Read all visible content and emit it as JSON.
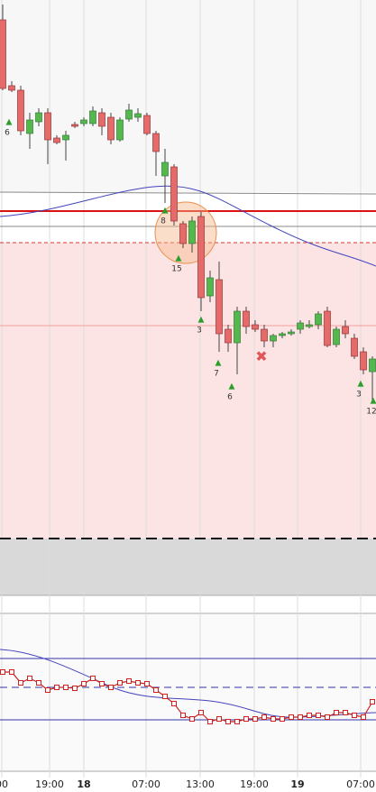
{
  "chart_data": {
    "type": "candlestick",
    "ylim": [
      0,
      660
    ],
    "ohlc": [
      [
        638,
        655,
        560,
        562
      ],
      [
        565,
        570,
        558,
        560
      ],
      [
        560,
        565,
        510,
        515
      ],
      [
        512,
        535,
        495,
        527
      ],
      [
        525,
        540,
        520,
        535
      ],
      [
        535,
        540,
        478,
        505
      ],
      [
        507,
        510,
        500,
        502
      ],
      [
        505,
        515,
        482,
        510
      ],
      [
        522,
        525,
        518,
        520
      ],
      [
        523,
        530,
        520,
        527
      ],
      [
        523,
        542,
        520,
        537
      ],
      [
        535,
        540,
        510,
        520
      ],
      [
        530,
        535,
        500,
        505
      ],
      [
        505,
        530,
        503,
        527
      ],
      [
        528,
        545,
        525,
        538
      ],
      [
        530,
        540,
        525,
        534
      ],
      [
        532,
        535,
        510,
        512
      ],
      [
        512,
        515,
        465,
        492
      ],
      [
        465,
        495,
        435,
        480
      ],
      [
        475,
        478,
        410,
        415
      ],
      [
        412,
        415,
        385,
        390
      ],
      [
        390,
        420,
        380,
        415
      ],
      [
        420,
        425,
        315,
        330
      ],
      [
        332,
        360,
        325,
        352
      ],
      [
        350,
        370,
        270,
        290
      ],
      [
        295,
        300,
        270,
        280
      ],
      [
        280,
        320,
        245,
        315
      ],
      [
        315,
        320,
        290,
        298
      ],
      [
        300,
        305,
        292,
        295
      ],
      [
        295,
        300,
        275,
        282
      ],
      [
        282,
        290,
        275,
        288
      ],
      [
        288,
        292,
        285,
        290
      ],
      [
        290,
        295,
        288,
        292
      ],
      [
        295,
        305,
        290,
        302
      ],
      [
        298,
        305,
        296,
        300
      ],
      [
        300,
        315,
        295,
        312
      ],
      [
        315,
        320,
        275,
        277
      ],
      [
        278,
        298,
        275,
        295
      ],
      [
        298,
        305,
        285,
        290
      ],
      [
        285,
        290,
        262,
        265
      ],
      [
        270,
        275,
        245,
        250
      ],
      [
        248,
        265,
        215,
        262
      ]
    ],
    "up_color": "#55b84f",
    "down_color": "#e56b6b",
    "annotations": [
      "6",
      "8",
      "15",
      "3",
      "7",
      "6",
      "3",
      "12"
    ],
    "x_labels": [
      "00",
      "19:00",
      "18",
      "07:00",
      "13:00",
      "19:00",
      "19",
      "07:00"
    ],
    "indicator": {
      "ylim": [
        0,
        175
      ],
      "color": "#cc2222",
      "values": [
        110,
        110,
        98,
        103,
        98,
        90,
        93,
        93,
        92,
        97,
        103,
        97,
        93,
        98,
        100,
        98,
        97,
        90,
        83,
        75,
        62,
        58,
        65,
        55,
        58,
        55,
        55,
        58,
        58,
        60,
        58,
        58,
        60,
        60,
        62,
        62,
        60,
        65,
        65,
        62,
        60,
        77
      ]
    }
  }
}
